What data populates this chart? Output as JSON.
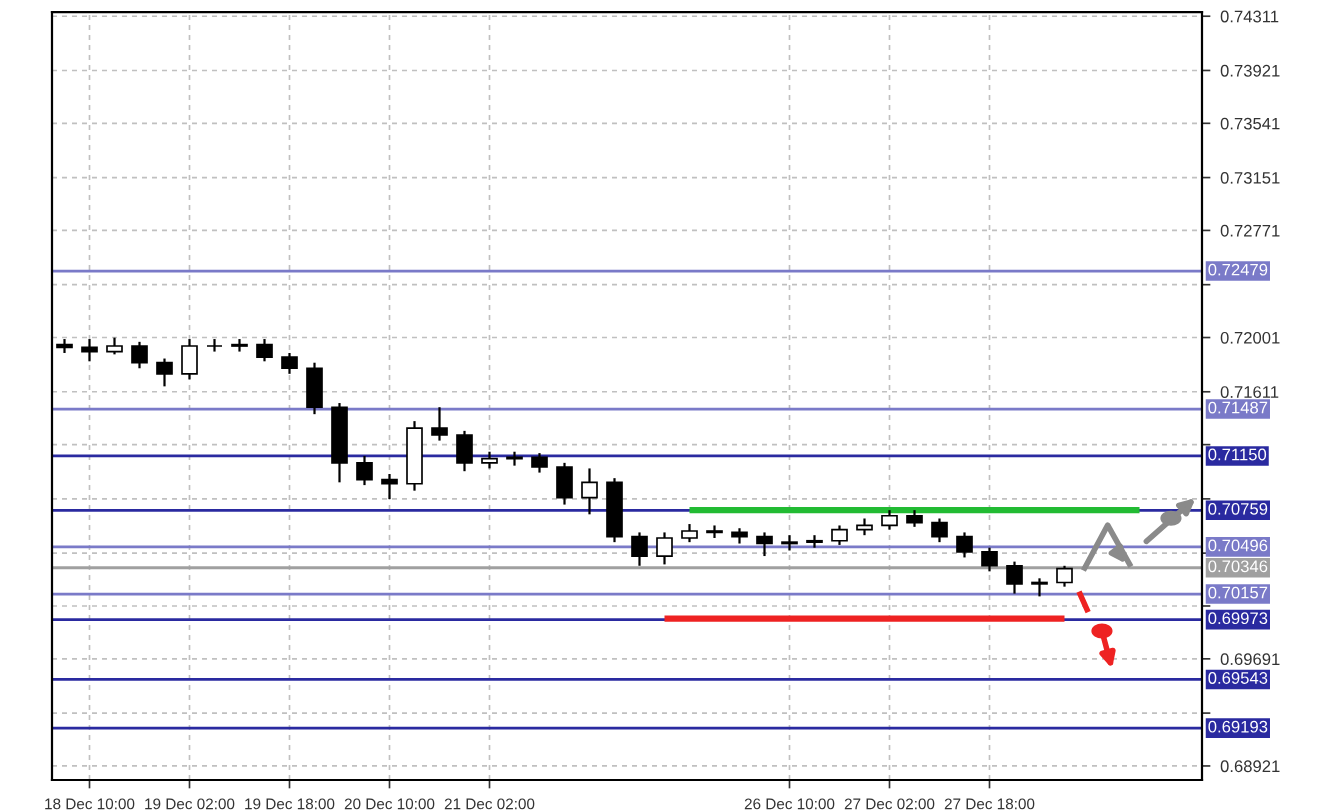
{
  "chart_data": {
    "type": "candlestick",
    "categories": [
      null,
      "18 Dec 10:00",
      null,
      null,
      null,
      "19 Dec 02:00",
      null,
      null,
      null,
      "19 Dec 18:00",
      null,
      null,
      null,
      "20 Dec 10:00",
      null,
      null,
      null,
      "21 Dec 02:00",
      null,
      null,
      null,
      null,
      null,
      null,
      null,
      null,
      null,
      null,
      null,
      "26 Dec 10:00",
      null,
      null,
      null,
      "27 Dec 02:00",
      null,
      null,
      null,
      "27 Dec 18:00",
      null,
      null,
      null,
      null,
      null,
      null,
      null,
      null
    ],
    "ohlc": [
      [
        0.7195,
        0.7199,
        0.7189,
        0.7193
      ],
      [
        0.7193,
        0.7199,
        0.7183,
        0.719
      ],
      [
        0.719,
        0.72,
        0.7188,
        0.7194
      ],
      [
        0.7194,
        0.7197,
        0.7178,
        0.7182
      ],
      [
        0.7182,
        0.7185,
        0.7165,
        0.7174
      ],
      [
        0.7174,
        0.7199,
        0.717,
        0.7194
      ],
      [
        0.7194,
        0.7199,
        0.719,
        0.7194
      ],
      [
        0.7194,
        0.7199,
        0.719,
        0.7195
      ],
      [
        0.7195,
        0.7199,
        0.7183,
        0.7186
      ],
      [
        0.7186,
        0.7189,
        0.7174,
        0.7178
      ],
      [
        0.7178,
        0.7182,
        0.7145,
        0.715
      ],
      [
        0.715,
        0.7153,
        0.7096,
        0.711
      ],
      [
        0.711,
        0.7115,
        0.7094,
        0.7098
      ],
      [
        0.7098,
        0.7102,
        0.7084,
        0.7095
      ],
      [
        0.7095,
        0.714,
        0.709,
        0.7135
      ],
      [
        0.7135,
        0.715,
        0.7126,
        0.713
      ],
      [
        0.713,
        0.7133,
        0.7104,
        0.711
      ],
      [
        0.711,
        0.7118,
        0.7106,
        0.7113
      ],
      [
        0.7113,
        0.7118,
        0.7108,
        0.7114
      ],
      [
        0.7114,
        0.7117,
        0.7103,
        0.7107
      ],
      [
        0.7107,
        0.711,
        0.708,
        0.7085
      ],
      [
        0.7085,
        0.7106,
        0.7073,
        0.7096
      ],
      [
        0.7096,
        0.7099,
        0.7053,
        0.7057
      ],
      [
        0.7057,
        0.706,
        0.7036,
        0.7043
      ],
      [
        0.7043,
        0.706,
        0.7037,
        0.7056
      ],
      [
        0.7056,
        0.7066,
        0.7053,
        0.7061
      ],
      [
        0.7061,
        0.7065,
        0.7056,
        0.706
      ],
      [
        0.706,
        0.7063,
        0.7052,
        0.7057
      ],
      [
        0.7057,
        0.706,
        0.7043,
        0.7052
      ],
      [
        0.7052,
        0.7058,
        0.7047,
        0.7053
      ],
      [
        0.7053,
        0.7058,
        0.7049,
        0.7054
      ],
      [
        0.7054,
        0.7065,
        0.7051,
        0.7062
      ],
      [
        0.7062,
        0.707,
        0.7058,
        0.7065
      ],
      [
        0.7065,
        0.7076,
        0.7062,
        0.7072
      ],
      [
        0.7072,
        0.7076,
        0.7064,
        0.7067
      ],
      [
        0.7067,
        0.707,
        0.7053,
        0.7057
      ],
      [
        0.7057,
        0.706,
        0.7042,
        0.7046
      ],
      [
        0.7046,
        0.7049,
        0.7032,
        0.7036
      ],
      [
        0.7036,
        0.7039,
        0.7016,
        0.7023
      ],
      [
        0.7023,
        0.7027,
        0.7014,
        0.7024
      ],
      [
        0.7024,
        0.7036,
        0.7021,
        0.7034
      ],
      null,
      null,
      null,
      null,
      null
    ],
    "series": [
      {
        "type": "line",
        "color": "#22bb33",
        "values": [
          null,
          null,
          null,
          null,
          null,
          null,
          null,
          null,
          null,
          null,
          null,
          null,
          null,
          null,
          null,
          null,
          null,
          null,
          null,
          null,
          null,
          null,
          null,
          null,
          null,
          0.7076,
          0.7076,
          0.7076,
          0.7076,
          0.7076,
          0.7076,
          0.7076,
          0.7076,
          0.7076,
          0.7076,
          0.7076,
          0.7076,
          0.7076,
          0.7076,
          0.7076,
          0.7076,
          0.7076,
          0.7076,
          0.7076,
          null,
          null
        ]
      },
      {
        "type": "line",
        "color": "#ee2222",
        "values": [
          null,
          null,
          null,
          null,
          null,
          null,
          null,
          null,
          null,
          null,
          null,
          null,
          null,
          null,
          null,
          null,
          null,
          null,
          null,
          null,
          null,
          null,
          null,
          null,
          0.6998,
          0.6998,
          0.6998,
          0.6998,
          0.6998,
          0.6998,
          0.6998,
          0.6998,
          0.6998,
          0.6998,
          0.6998,
          0.6998,
          0.6998,
          0.6998,
          0.6998,
          0.6998,
          0.6998,
          null,
          null,
          null,
          null,
          null
        ]
      }
    ],
    "ylim": [
      0.6882,
      0.7434
    ],
    "yticks": [
      {
        "value": 0.74311,
        "label": "0.74311"
      },
      {
        "value": 0.73921,
        "label": "0.73921"
      },
      {
        "value": 0.73541,
        "label": "0.73541"
      },
      {
        "value": 0.73151,
        "label": "0.73151"
      },
      {
        "value": 0.72771,
        "label": "0.72771"
      },
      {
        "value": 0.72381,
        "label": null
      },
      {
        "value": 0.72001,
        "label": "0.72001"
      },
      {
        "value": 0.71611,
        "label": "0.71611"
      },
      {
        "value": 0.71231,
        "label": null
      },
      {
        "value": 0.70841,
        "label": null
      },
      {
        "value": 0.70451,
        "label": null
      },
      {
        "value": 0.70071,
        "label": null
      },
      {
        "value": 0.69691,
        "label": "0.69691"
      },
      {
        "value": 0.69301,
        "label": null
      },
      {
        "value": 0.68921,
        "label": "0.68921"
      }
    ],
    "ref_lines": [
      {
        "axis": "y",
        "value": 0.72479,
        "label": "0.72479",
        "color": "#7a7ac8"
      },
      {
        "axis": "y",
        "value": 0.71487,
        "label": "0.71487",
        "color": "#7a7ac8"
      },
      {
        "axis": "y",
        "value": 0.7115,
        "label": "0.71150",
        "color": "#2a2aa0"
      },
      {
        "axis": "y",
        "value": 0.70759,
        "label": "0.70759",
        "color": "#2a2aa0"
      },
      {
        "axis": "y",
        "value": 0.70496,
        "label": "0.70496",
        "color": "#7a7ac8"
      },
      {
        "axis": "y",
        "value": 0.70346,
        "label": "0.70346",
        "color": "#a0a0a0"
      },
      {
        "axis": "y",
        "value": 0.70157,
        "label": "0.70157",
        "color": "#7a7ac8"
      },
      {
        "axis": "y",
        "value": 0.69973,
        "label": "0.69973",
        "color": "#2a2aa0"
      },
      {
        "axis": "y",
        "value": 0.69543,
        "label": "0.69543",
        "color": "#2a2aa0"
      },
      {
        "axis": "y",
        "value": 0.69193,
        "label": "0.69193",
        "color": "#2a2aa0"
      }
    ],
    "grid": true
  }
}
